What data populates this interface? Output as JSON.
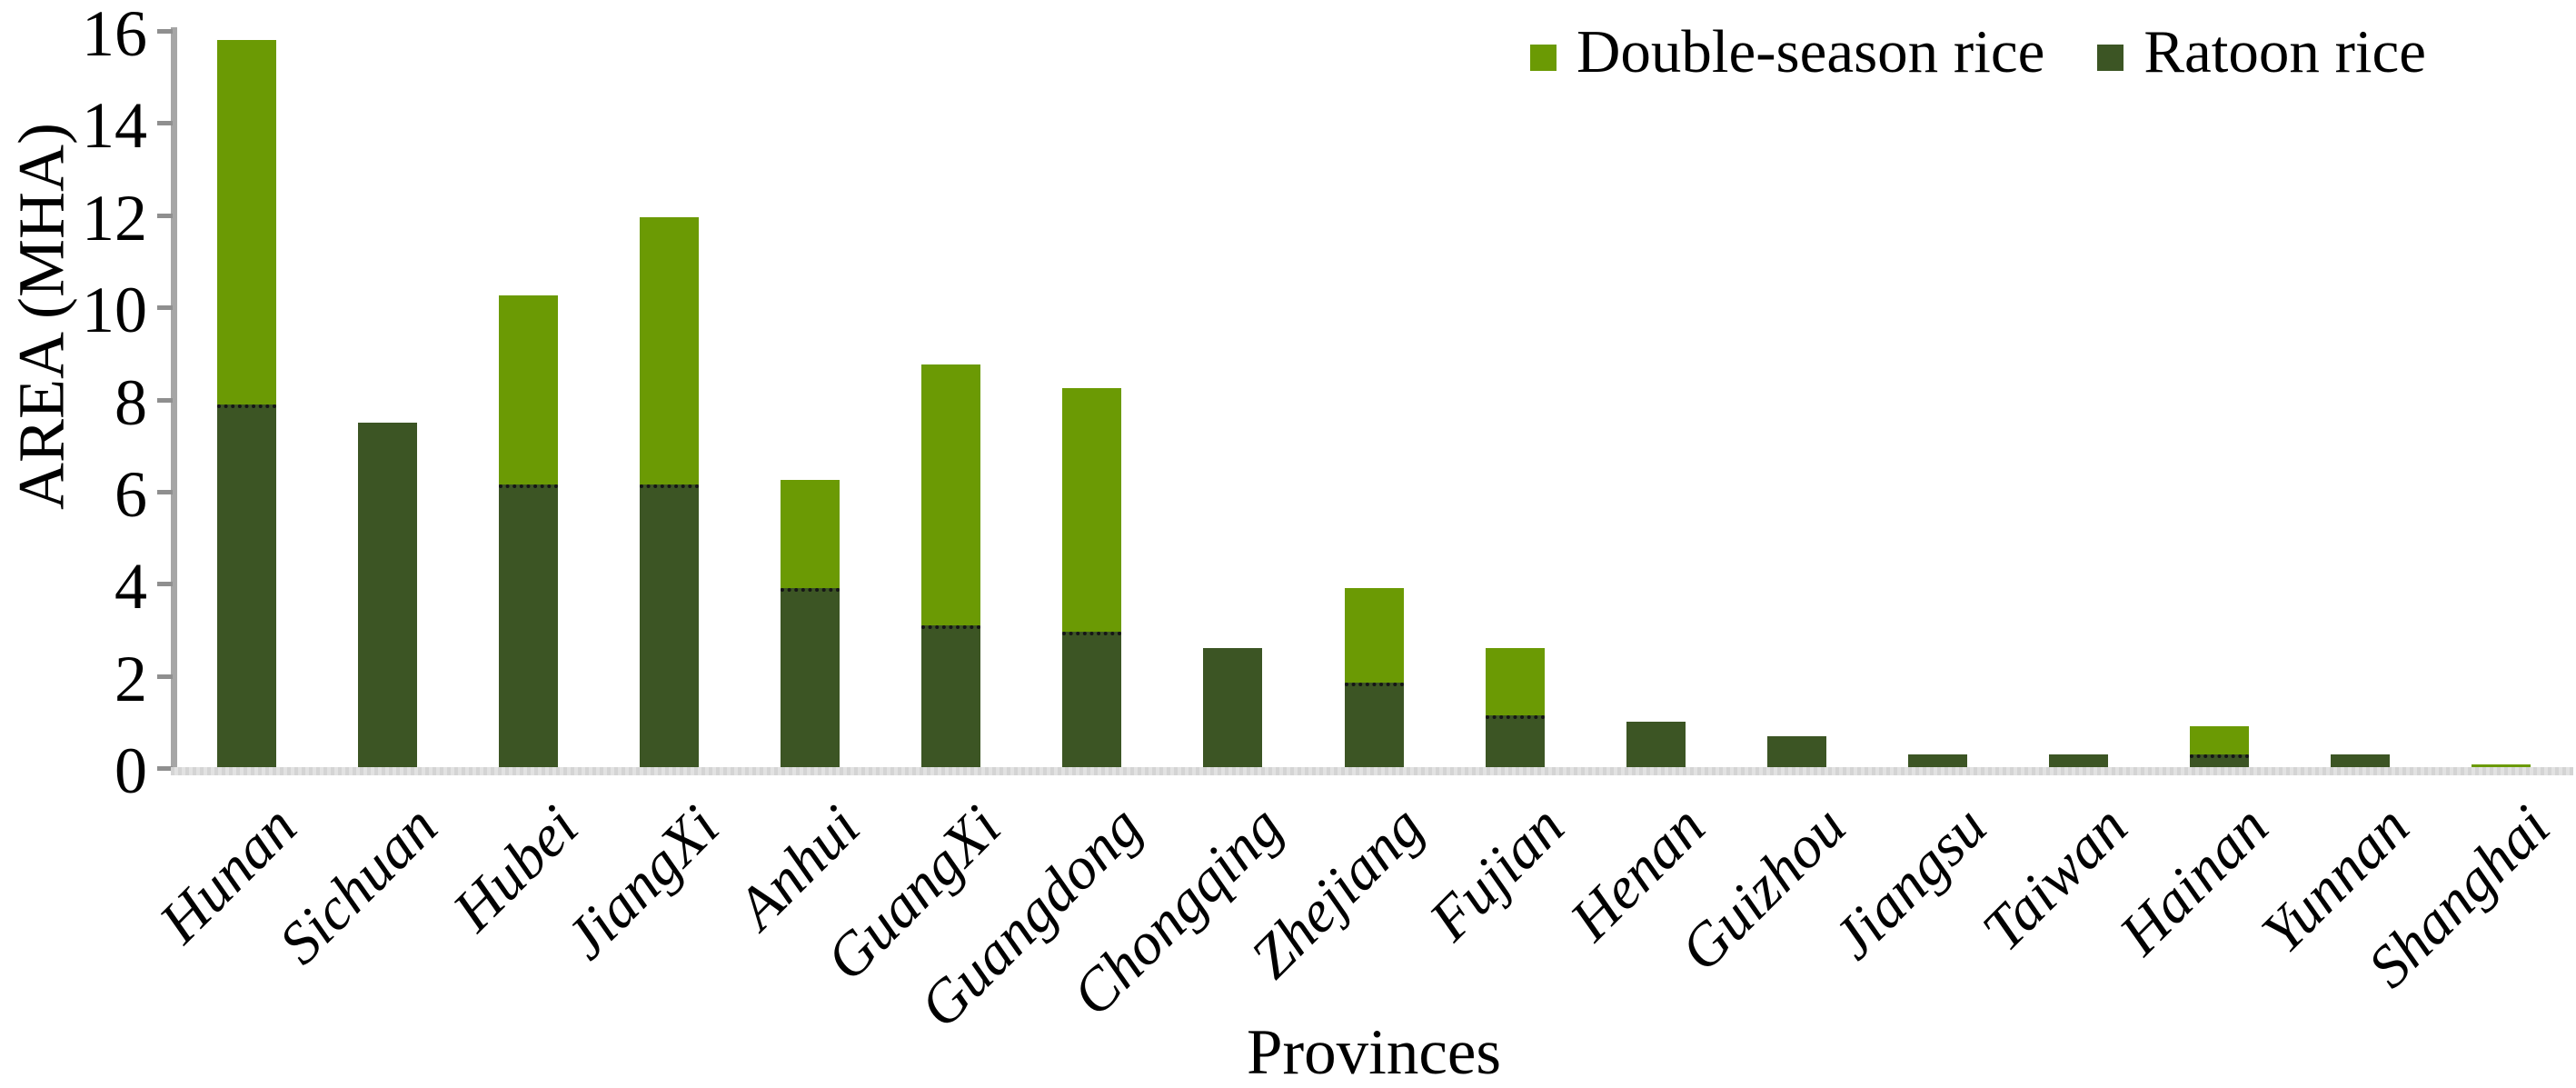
{
  "chart_data": {
    "type": "bar",
    "stacked": true,
    "title": "",
    "xlabel": "Provinces",
    "ylabel": "AREA (MHA)",
    "ylim": [
      0,
      16
    ],
    "yticks": [
      0,
      2,
      4,
      6,
      8,
      10,
      12,
      14,
      16
    ],
    "grid": false,
    "legend_position": "top-right",
    "categories": [
      "Hunan",
      "Sichuan",
      "Hubei",
      "JiangXi",
      "Anhui",
      "GuangXi",
      "Guangdong",
      "Chongqing",
      "Zhejiang",
      "Fujian",
      "Henan",
      "Guizhou",
      "Jiangsu",
      "Taiwan",
      "Hainan",
      "Yunnan",
      "Shanghai"
    ],
    "series": [
      {
        "name": "Ratoon rice",
        "color": "#3C5524",
        "stack_order": "bottom",
        "values": [
          7.9,
          7.5,
          6.15,
          6.15,
          3.9,
          3.1,
          2.95,
          2.6,
          1.85,
          1.15,
          1.0,
          0.7,
          0.3,
          0.3,
          0.3,
          0.3,
          0
        ]
      },
      {
        "name": "Double-season rice",
        "color": "#6B9A04",
        "stack_order": "top",
        "values": [
          7.9,
          0,
          4.1,
          5.8,
          2.35,
          5.65,
          5.3,
          0,
          2.05,
          1.45,
          0,
          0,
          0,
          0,
          0.6,
          0,
          0.07
        ]
      }
    ],
    "totals": [
      15.8,
      7.5,
      10.25,
      11.95,
      6.25,
      8.75,
      8.25,
      2.6,
      3.9,
      2.6,
      1.0,
      0.7,
      0.3,
      0.3,
      0.9,
      0.3,
      0.07
    ],
    "legend": [
      {
        "label": "Double-season rice",
        "color": "#6B9A04"
      },
      {
        "label": "Ratoon rice",
        "color": "#3C5524"
      }
    ]
  },
  "colors": {
    "axis_line": "#a6a6a6",
    "tick_mark": "#8f8f8f",
    "floor_band": "#dcdcdc",
    "segment_divider": "#161616",
    "background": "#ffffff"
  }
}
